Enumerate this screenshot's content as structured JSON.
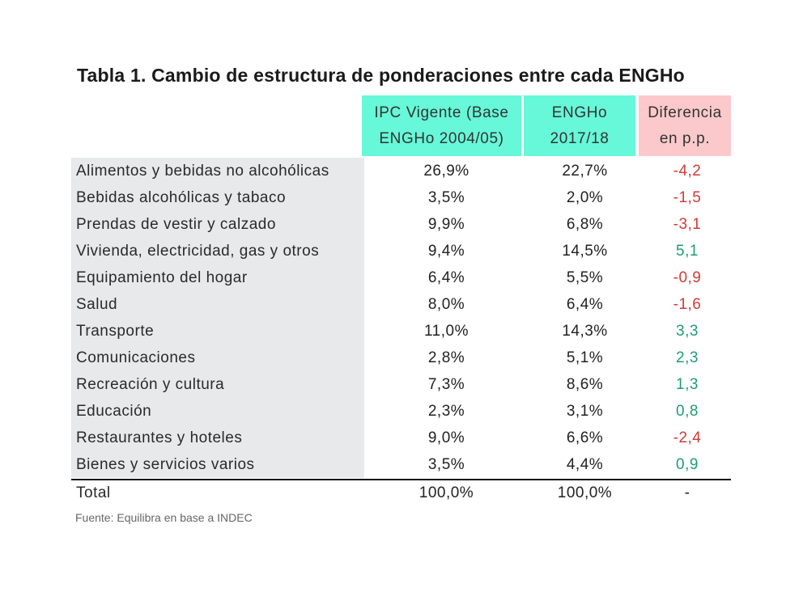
{
  "title": "Tabla 1. Cambio de estructura de ponderaciones entre cada ENGHo",
  "colors": {
    "header_teal": "#66f8d8",
    "header_pink": "#fbc9cb",
    "negative": "#d23a36",
    "positive": "#1e9e72",
    "label_bg": "#e7e9ea"
  },
  "headers": {
    "col1": [
      "IPC Vigente (Base",
      "ENGHo  2004/05)"
    ],
    "col2": [
      "ENGHo",
      "2017/18"
    ],
    "col3": [
      "Diferencia",
      "en p.p."
    ]
  },
  "rows": [
    {
      "label": "Alimentos y bebidas no alcohólicas",
      "ipc": "26,9%",
      "engho": "22,7%",
      "diff": "-4,2"
    },
    {
      "label": "Bebidas alcohólicas y tabaco",
      "ipc": "3,5%",
      "engho": "2,0%",
      "diff": "-1,5"
    },
    {
      "label": "Prendas de vestir y calzado",
      "ipc": "9,9%",
      "engho": "6,8%",
      "diff": "-3,1"
    },
    {
      "label": "Vivienda, electricidad, gas y otros",
      "ipc": "9,4%",
      "engho": "14,5%",
      "diff": "5,1"
    },
    {
      "label": "Equipamiento del hogar",
      "ipc": "6,4%",
      "engho": "5,5%",
      "diff": "-0,9"
    },
    {
      "label": "Salud",
      "ipc": "8,0%",
      "engho": "6,4%",
      "diff": "-1,6"
    },
    {
      "label": "Transporte",
      "ipc": "11,0%",
      "engho": "14,3%",
      "diff": "3,3"
    },
    {
      "label": "Comunicaciones",
      "ipc": "2,8%",
      "engho": "5,1%",
      "diff": "2,3"
    },
    {
      "label": "Recreación y cultura",
      "ipc": "7,3%",
      "engho": "8,6%",
      "diff": "1,3"
    },
    {
      "label": "Educación",
      "ipc": "2,3%",
      "engho": "3,1%",
      "diff": "0,8"
    },
    {
      "label": "Restaurantes y hoteles",
      "ipc": "9,0%",
      "engho": "6,6%",
      "diff": "-2,4"
    },
    {
      "label": "Bienes y servicios varios",
      "ipc": "3,5%",
      "engho": "4,4%",
      "diff": "0,9"
    }
  ],
  "total": {
    "label": "Total",
    "ipc": "100,0%",
    "engho": "100,0%",
    "diff": "-"
  },
  "source": "Fuente: Equilibra en base a INDEC"
}
